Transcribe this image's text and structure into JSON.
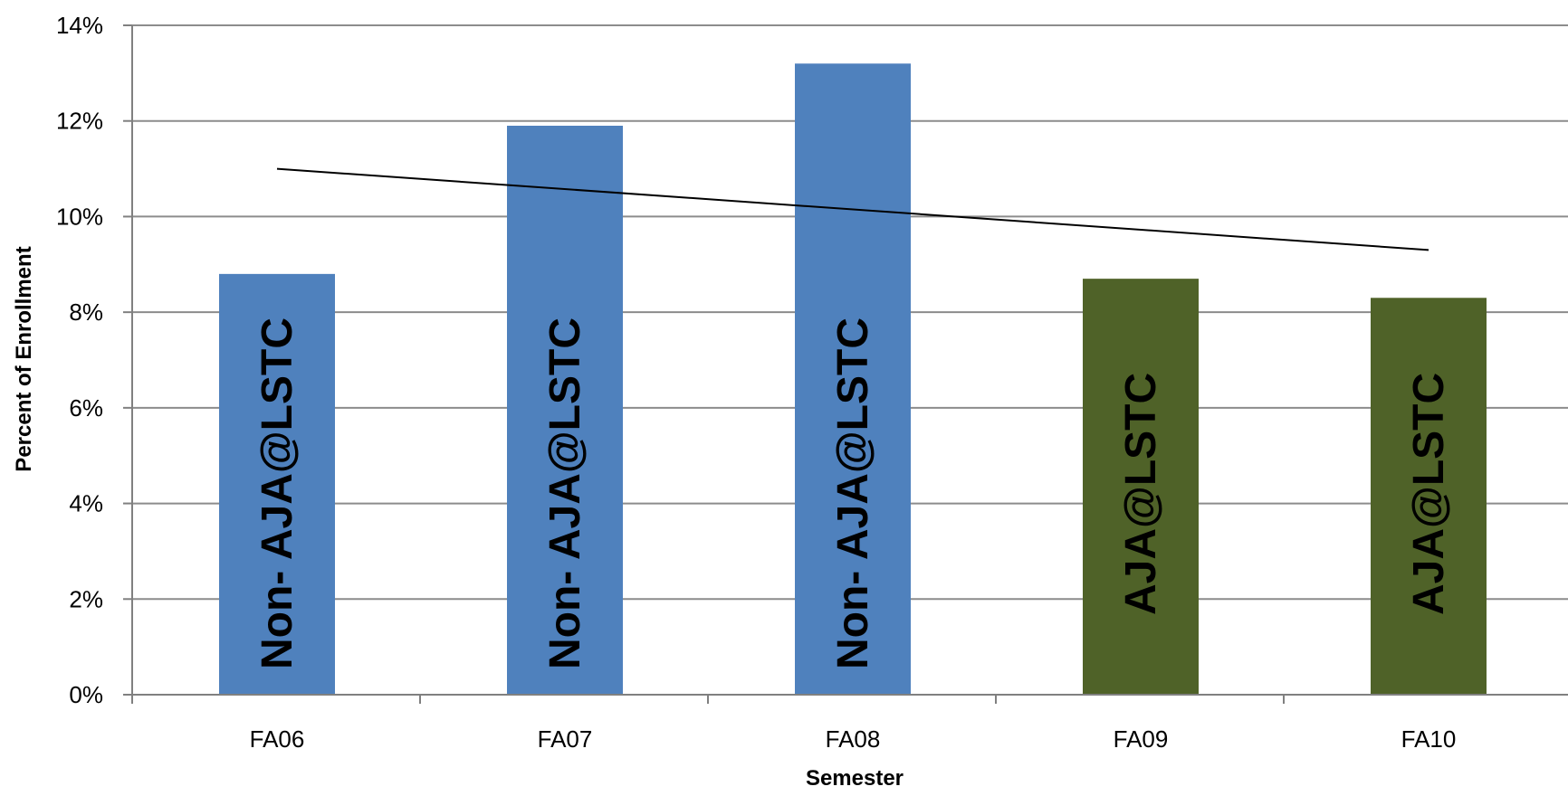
{
  "chart_data": {
    "type": "bar",
    "title": "",
    "xlabel": "Semester",
    "ylabel": "Percent of Enrollment",
    "categories": [
      "FA06",
      "FA07",
      "FA08",
      "FA09",
      "FA10"
    ],
    "values": [
      8.8,
      11.9,
      13.2,
      8.7,
      8.3
    ],
    "bar_labels": [
      "Non- AJA@LSTC",
      "Non- AJA@LSTC",
      "Non- AJA@LSTC",
      "AJA@LSTC",
      "AJA@LSTC"
    ],
    "bar_colors": [
      "#4f81bd",
      "#4f81bd",
      "#4f81bd",
      "#4f6228",
      "#4f6228"
    ],
    "ylim": [
      0,
      14
    ],
    "yticks": [
      0,
      2,
      4,
      6,
      8,
      10,
      12,
      14
    ],
    "ytick_suffix": "%",
    "grid": true,
    "legend": "none",
    "trendline": {
      "type": "linear",
      "start": 11.0,
      "end": 9.3,
      "color": "#000000"
    }
  }
}
